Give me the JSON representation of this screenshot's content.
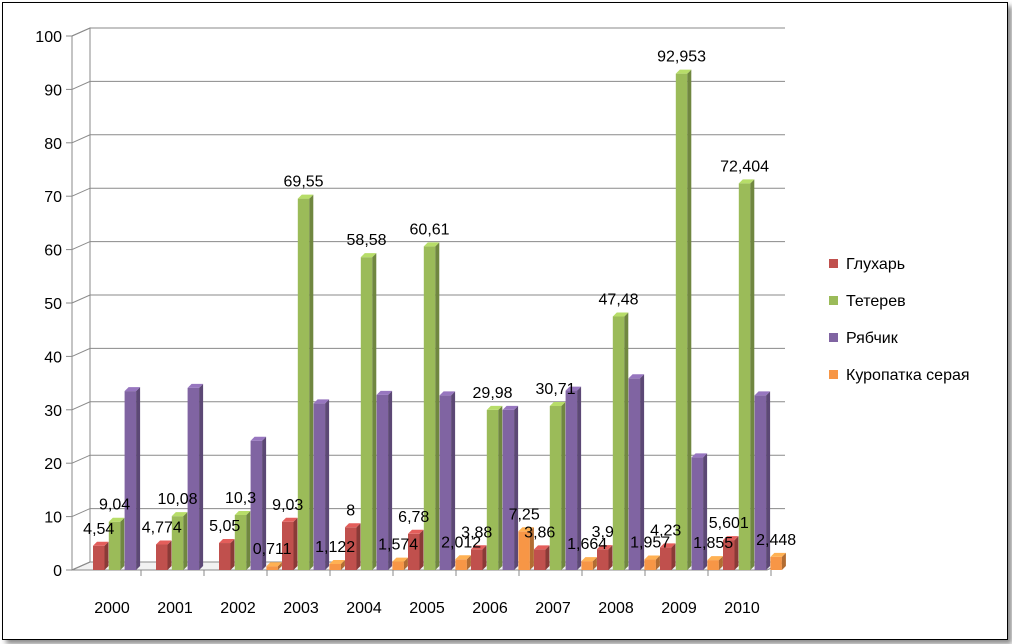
{
  "chart_data": {
    "type": "bar",
    "categories": [
      "2000",
      "2001",
      "2002",
      "2003",
      "2004",
      "2005",
      "2006",
      "2007",
      "2008",
      "2009",
      "2010"
    ],
    "ylim": [
      0,
      100
    ],
    "yticks": [
      "0",
      "10",
      "20",
      "30",
      "40",
      "50",
      "60",
      "70",
      "80",
      "90",
      "100"
    ],
    "grid": true,
    "legend_position": "right",
    "series": [
      {
        "name": "Глухарь",
        "color": "#C0504D",
        "values": [
          4.54,
          4.774,
          5.05,
          9.03,
          8,
          6.78,
          3.88,
          3.86,
          3.9,
          4.23,
          5.601
        ],
        "labels": [
          "4,54",
          "4,774",
          "5,05",
          "9,03",
          "8",
          "6,78",
          "3,88",
          "3,86",
          "3,9",
          "4,23",
          "5,601"
        ]
      },
      {
        "name": "Тетерев",
        "color": "#9BBB59",
        "values": [
          9.04,
          10.08,
          10.3,
          69.55,
          58.58,
          60.61,
          29.98,
          30.71,
          47.48,
          92.953,
          72.404
        ],
        "labels": [
          "9,04",
          "10,08",
          "10,3",
          "69,55",
          "58,58",
          "60,61",
          "29,98",
          "30,71",
          "47,48",
          "92,953",
          "72,404"
        ]
      },
      {
        "name": "Рябчик",
        "color": "#8064A2",
        "values": [
          33.5,
          34.1,
          24.2,
          31.2,
          32.8,
          32.7,
          29.98,
          33.6,
          35.9,
          21.1,
          32.7
        ],
        "labels": null
      },
      {
        "name": "Куропатка серая",
        "color": "#F79646",
        "values": [
          0,
          0,
          0.711,
          1.122,
          1.574,
          2.012,
          7.25,
          1.664,
          1.957,
          1.855,
          2.448
        ],
        "labels": [
          "",
          "",
          "0,711",
          "1,122",
          "1,574",
          "2,012",
          "7,25",
          "1,664",
          "1,957",
          "1,855",
          "2,448"
        ]
      }
    ]
  }
}
